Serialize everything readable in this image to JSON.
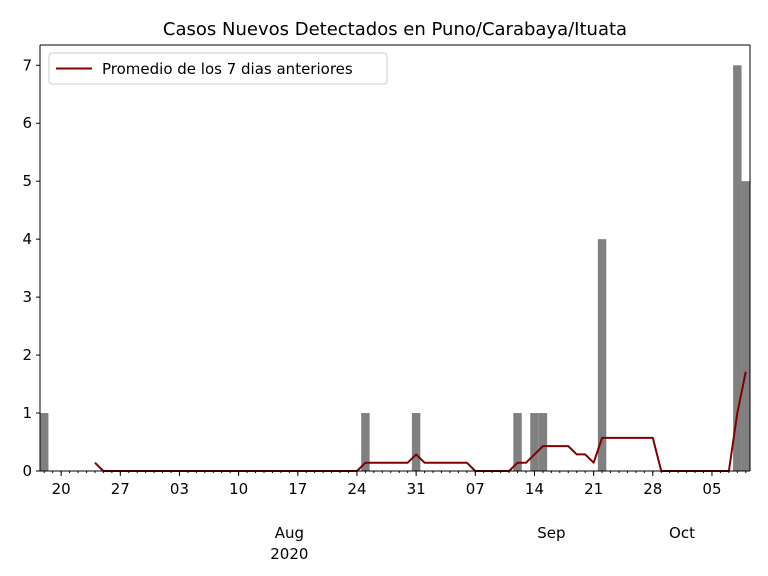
{
  "chart_data": {
    "type": "bar",
    "title": "Casos Nuevos Detectados en Puno/Carabaya/Ituata",
    "xlabel": "",
    "ylabel": "",
    "x_start": "2020-07-18",
    "x_end": "2020-10-09",
    "ylim": [
      0,
      7.35
    ],
    "yticks": [
      0,
      1,
      2,
      3,
      4,
      5,
      6,
      7
    ],
    "x_major_ticks": [
      {
        "date": "2020-07-20",
        "label": "20"
      },
      {
        "date": "2020-07-27",
        "label": "27"
      },
      {
        "date": "2020-08-03",
        "label": "03"
      },
      {
        "date": "2020-08-10",
        "label": "10"
      },
      {
        "date": "2020-08-17",
        "label": "17"
      },
      {
        "date": "2020-08-24",
        "label": "24"
      },
      {
        "date": "2020-08-31",
        "label": "31"
      },
      {
        "date": "2020-09-07",
        "label": "07"
      },
      {
        "date": "2020-09-14",
        "label": "14"
      },
      {
        "date": "2020-09-21",
        "label": "21"
      },
      {
        "date": "2020-09-28",
        "label": "28"
      },
      {
        "date": "2020-10-05",
        "label": "05"
      }
    ],
    "x_month_labels": [
      {
        "date": "2020-08-16",
        "label": "Aug"
      },
      {
        "date": "2020-09-16",
        "label": "Sep"
      },
      {
        "date": "2020-10-16",
        "label": "Oct"
      }
    ],
    "year_label": {
      "date": "2020-08-16",
      "label": "2020"
    },
    "bar_color": "#808080",
    "line_color": "#800000",
    "legend": {
      "position": "upper left",
      "label": "Promedio de los 7 dias anteriores"
    },
    "bars": [
      {
        "date": "2020-07-18",
        "value": 1
      },
      {
        "date": "2020-08-25",
        "value": 1
      },
      {
        "date": "2020-08-31",
        "value": 1
      },
      {
        "date": "2020-09-12",
        "value": 1
      },
      {
        "date": "2020-09-14",
        "value": 1
      },
      {
        "date": "2020-09-15",
        "value": 1
      },
      {
        "date": "2020-09-22",
        "value": 4
      },
      {
        "date": "2020-10-08",
        "value": 7
      },
      {
        "date": "2020-10-09",
        "value": 5
      }
    ],
    "series": [
      {
        "name": "Promedio de los 7 dias anteriores",
        "points": [
          {
            "date": "2020-07-24",
            "value": 0.143
          },
          {
            "date": "2020-07-25",
            "value": 0
          },
          {
            "date": "2020-08-24",
            "value": 0
          },
          {
            "date": "2020-08-25",
            "value": 0.143
          },
          {
            "date": "2020-08-30",
            "value": 0.143
          },
          {
            "date": "2020-08-31",
            "value": 0.286
          },
          {
            "date": "2020-09-01",
            "value": 0.143
          },
          {
            "date": "2020-09-06",
            "value": 0.143
          },
          {
            "date": "2020-09-07",
            "value": 0
          },
          {
            "date": "2020-09-11",
            "value": 0
          },
          {
            "date": "2020-09-12",
            "value": 0.143
          },
          {
            "date": "2020-09-13",
            "value": 0.143
          },
          {
            "date": "2020-09-14",
            "value": 0.286
          },
          {
            "date": "2020-09-15",
            "value": 0.429
          },
          {
            "date": "2020-09-18",
            "value": 0.429
          },
          {
            "date": "2020-09-19",
            "value": 0.286
          },
          {
            "date": "2020-09-20",
            "value": 0.286
          },
          {
            "date": "2020-09-21",
            "value": 0.143
          },
          {
            "date": "2020-09-22",
            "value": 0.571
          },
          {
            "date": "2020-09-28",
            "value": 0.571
          },
          {
            "date": "2020-09-29",
            "value": 0
          },
          {
            "date": "2020-10-07",
            "value": 0
          },
          {
            "date": "2020-10-08",
            "value": 1.0
          },
          {
            "date": "2020-10-09",
            "value": 1.714
          }
        ]
      }
    ],
    "grid": false
  }
}
